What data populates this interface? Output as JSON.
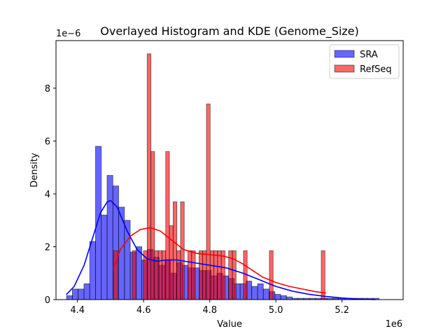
{
  "chart_data": {
    "type": "bar",
    "title": "Overlayed Histogram and KDE (Genome_Size)",
    "xlabel": "Value",
    "ylabel": "Density",
    "x_offset_label": "1e6",
    "y_offset_label": "1e−6",
    "xlim": [
      4.335,
      5.385
    ],
    "ylim": [
      0,
      9.8
    ],
    "xticks": [
      4.4,
      4.6,
      4.8,
      5.0,
      5.2
    ],
    "xtick_labels": [
      "4.4",
      "4.6",
      "4.8",
      "5.0",
      "5.2"
    ],
    "yticks": [
      0,
      2,
      4,
      6,
      8
    ],
    "ytick_labels": [
      "0",
      "2",
      "4",
      "6",
      "8"
    ],
    "grid": false,
    "legend_position": "top-right",
    "series": [
      {
        "name": "SRA",
        "color": "#0000ff",
        "bin_start": 4.367,
        "bin_width": 0.0175,
        "densities": [
          0.15,
          0.4,
          0.4,
          0.6,
          2.2,
          5.8,
          3.2,
          4.7,
          4.3,
          3.5,
          3.0,
          1.8,
          2.0,
          1.5,
          1.9,
          1.6,
          1.3,
          1.5,
          1.0,
          1.4,
          1.3,
          1.2,
          1.2,
          1.1,
          1.1,
          0.9,
          1.0,
          0.9,
          0.8,
          0.6,
          0.6,
          0.7,
          0.5,
          0.6,
          0.4,
          0.3,
          0.2,
          0.15,
          0.1,
          0.05,
          0.05,
          0.05,
          0.05,
          0.05,
          0.05,
          0.05,
          0.05,
          0.05,
          0.05,
          0.05,
          0.05,
          0.05,
          0.05,
          0.05
        ],
        "kde_x": [
          4.367,
          4.39,
          4.42,
          4.45,
          4.47,
          4.49,
          4.5,
          4.52,
          4.55,
          4.58,
          4.61,
          4.64,
          4.67,
          4.7,
          4.75,
          4.8,
          4.85,
          4.9,
          4.95,
          5.0,
          5.05,
          5.1,
          5.15,
          5.2,
          5.25,
          5.3
        ],
        "kde_y": [
          0.2,
          0.5,
          1.3,
          2.5,
          3.3,
          3.7,
          3.75,
          3.5,
          2.6,
          1.9,
          1.55,
          1.45,
          1.5,
          1.5,
          1.4,
          1.3,
          1.2,
          1.0,
          0.75,
          0.5,
          0.32,
          0.2,
          0.12,
          0.06,
          0.02,
          0.0
        ]
      },
      {
        "name": "RefSeq",
        "color": "#ff0000",
        "bin_start": 4.51,
        "bin_width": 0.0112,
        "densities": [
          1.85,
          0,
          0,
          0,
          0,
          1.85,
          0,
          0,
          1.85,
          9.3,
          5.6,
          1.85,
          1.85,
          1.85,
          5.6,
          2.8,
          3.7,
          1.85,
          3.7,
          0,
          1.85,
          1.85,
          0,
          1.85,
          1.85,
          7.4,
          1.85,
          1.85,
          1.85,
          1.85,
          0,
          1.85,
          1.85,
          0,
          0,
          1.85,
          0,
          0,
          0,
          0,
          0,
          0,
          1.85,
          0,
          0,
          0,
          0,
          0,
          0,
          0,
          0,
          0,
          0,
          0,
          0,
          0,
          1.85
        ],
        "kde_x": [
          4.51,
          4.53,
          4.56,
          4.59,
          4.62,
          4.65,
          4.68,
          4.72,
          4.76,
          4.8,
          4.84,
          4.87,
          4.9,
          4.93,
          4.96,
          5.0,
          5.04,
          5.08,
          5.12,
          5.15
        ],
        "kde_y": [
          1.2,
          1.9,
          2.4,
          2.65,
          2.72,
          2.6,
          2.3,
          1.9,
          1.75,
          1.7,
          1.65,
          1.55,
          1.35,
          1.1,
          0.85,
          0.65,
          0.5,
          0.4,
          0.3,
          0.25
        ]
      }
    ]
  }
}
